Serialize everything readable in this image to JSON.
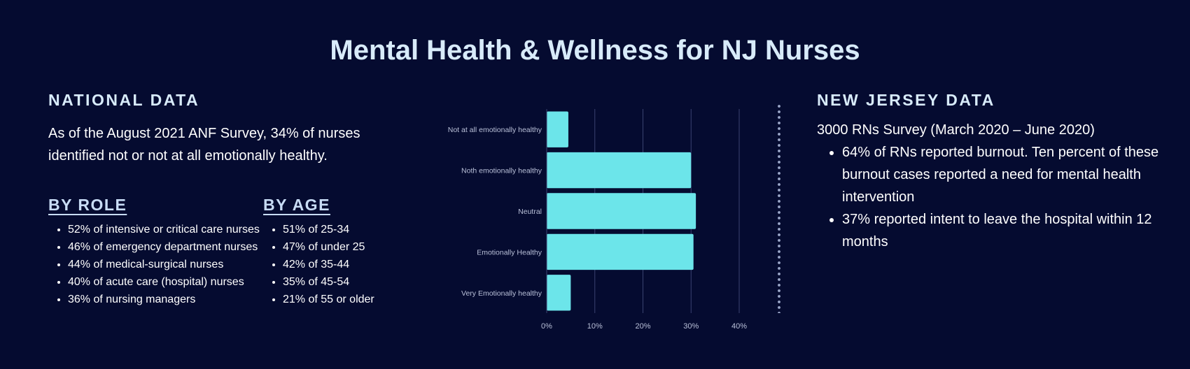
{
  "title": "Mental Health & Wellness for NJ Nurses",
  "national": {
    "heading": "NATIONAL DATA",
    "text": "As of the August 2021 ANF Survey, 34% of nurses identified not or not at all emotionally healthy.",
    "by_role": {
      "heading": "BY ROLE",
      "items": [
        "52% of intensive or critical care nurses",
        "46% of emergency department nurses",
        "44% of medical-surgical nurses",
        "40% of acute care (hospital) nurses",
        "36% of nursing managers"
      ]
    },
    "by_age": {
      "heading": "BY AGE",
      "items": [
        "51% of 25-34",
        "47% of under 25",
        "42% of 35-44",
        "35% of 45-54",
        "21% of 55 or older"
      ]
    }
  },
  "new_jersey": {
    "heading": "NEW JERSEY DATA",
    "survey": "3000 RNs Survey (March 2020 – June 2020)",
    "items": [
      "64% of RNs reported burnout. Ten percent of these burnout cases reported a need for mental health intervention",
      "37% reported intent to leave the hospital within 12 months"
    ]
  },
  "colors": {
    "background": "#050b30",
    "bar": "#6ce5ea",
    "heading": "#d8ebfa",
    "grid": "#3a4370",
    "label": "#b9c0d8"
  },
  "chart_data": {
    "type": "bar",
    "orientation": "horizontal",
    "categories": [
      "Not at all emotionally healthy",
      "Noth emotionally healthy",
      "Neutral",
      "Emotionally Healthy",
      "Very Emotionally healthy"
    ],
    "values": [
      4.5,
      30,
      31,
      30.5,
      5
    ],
    "xlim": [
      0,
      40
    ],
    "xticks": [
      "0%",
      "10%",
      "20%",
      "30%",
      "40%"
    ],
    "tick_values": [
      0,
      10,
      20,
      30,
      40
    ],
    "grid": true,
    "title": "",
    "xlabel": "",
    "ylabel": ""
  }
}
